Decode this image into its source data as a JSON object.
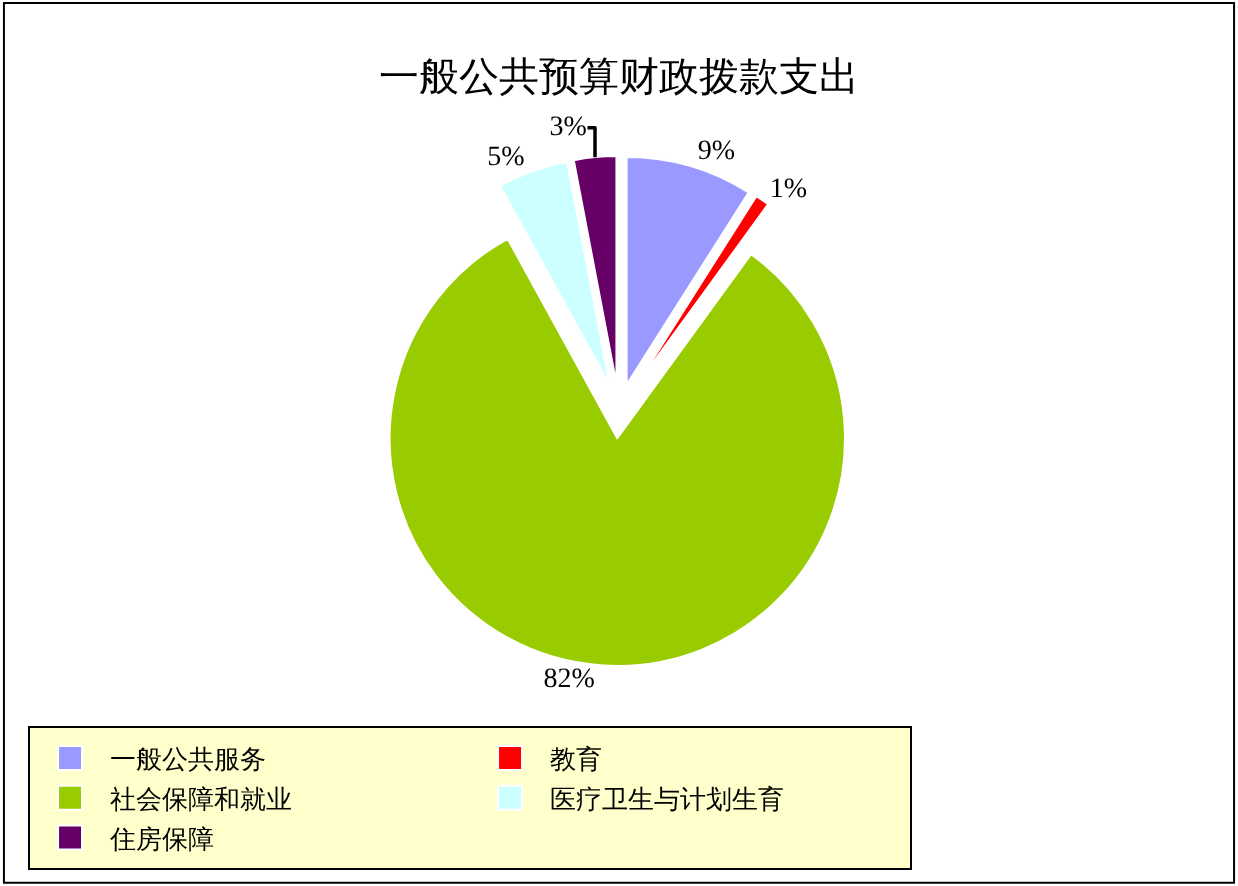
{
  "chart_data": {
    "type": "pie",
    "title": "一般公共预算财政拨款支出",
    "categories": [
      "一般公共服务",
      "教育",
      "社会保障和就业",
      "医疗卫生与计划生育",
      "住房保障"
    ],
    "values": [
      9,
      1,
      82,
      5,
      3
    ],
    "value_labels": [
      "9%",
      "1%",
      "82%",
      "5%",
      "3%"
    ],
    "colors": [
      "#9999ff",
      "#ff0000",
      "#99cc00",
      "#ccffff",
      "#660066"
    ],
    "legend": "bottom"
  }
}
